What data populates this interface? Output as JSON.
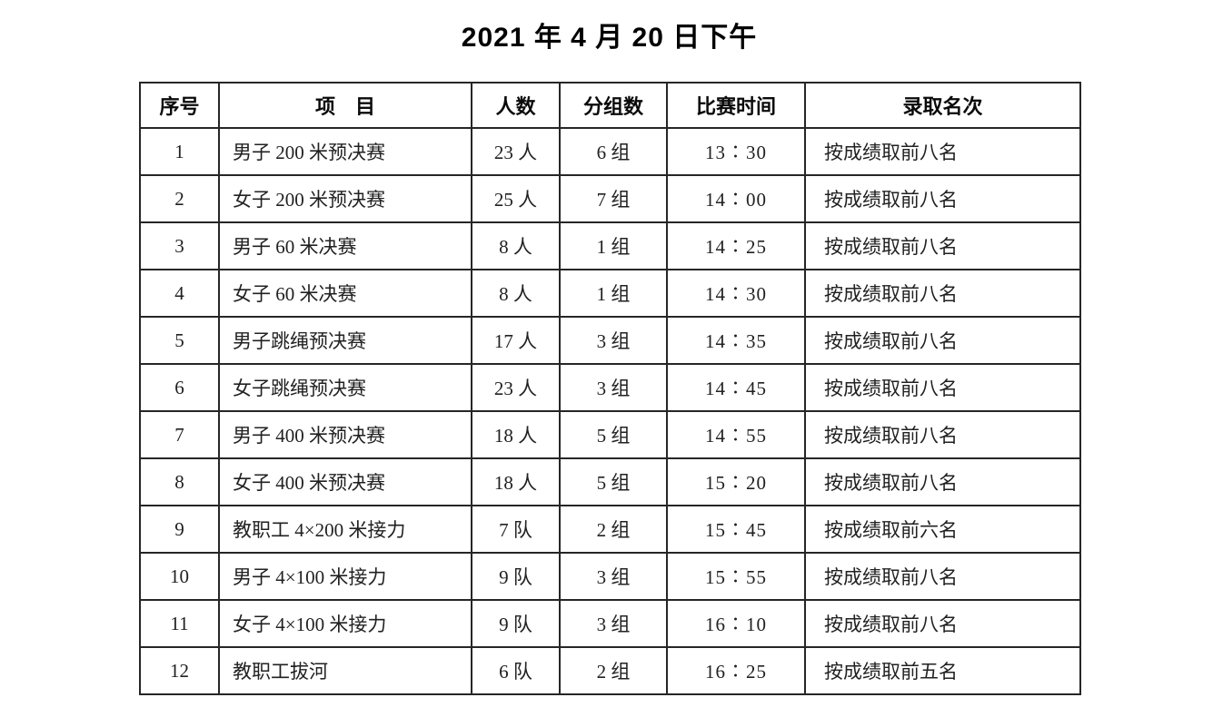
{
  "title": "2021 年 4 月 20 日下午",
  "table": {
    "headers": [
      "序号",
      "项　目",
      "人数",
      "分组数",
      "比赛时间",
      "录取名次"
    ],
    "rows": [
      {
        "no": "1",
        "event": "男子 200 米预决赛",
        "participants": "23 人",
        "groups": "6 组",
        "time": "13∶30",
        "placing": "按成绩取前八名"
      },
      {
        "no": "2",
        "event": "女子 200 米预决赛",
        "participants": "25 人",
        "groups": "7 组",
        "time": "14∶00",
        "placing": "按成绩取前八名"
      },
      {
        "no": "3",
        "event": "男子 60 米决赛",
        "participants": "8 人",
        "groups": "1 组",
        "time": "14∶25",
        "placing": "按成绩取前八名"
      },
      {
        "no": "4",
        "event": "女子 60 米决赛",
        "participants": "8 人",
        "groups": "1 组",
        "time": "14∶30",
        "placing": "按成绩取前八名"
      },
      {
        "no": "5",
        "event": "男子跳绳预决赛",
        "participants": "17 人",
        "groups": "3 组",
        "time": "14∶35",
        "placing": "按成绩取前八名"
      },
      {
        "no": "6",
        "event": "女子跳绳预决赛",
        "participants": "23 人",
        "groups": "3 组",
        "time": "14∶45",
        "placing": "按成绩取前八名"
      },
      {
        "no": "7",
        "event": "男子 400 米预决赛",
        "participants": "18 人",
        "groups": "5 组",
        "time": "14∶55",
        "placing": "按成绩取前八名"
      },
      {
        "no": "8",
        "event": "女子 400 米预决赛",
        "participants": "18 人",
        "groups": "5 组",
        "time": "15∶20",
        "placing": "按成绩取前八名"
      },
      {
        "no": "9",
        "event": "教职工 4×200 米接力",
        "participants": "7 队",
        "groups": "2 组",
        "time": "15∶45",
        "placing": "按成绩取前六名"
      },
      {
        "no": "10",
        "event": "男子 4×100 米接力",
        "participants": "9 队",
        "groups": "3 组",
        "time": "15∶55",
        "placing": "按成绩取前八名"
      },
      {
        "no": "11",
        "event": "女子 4×100 米接力",
        "participants": "9 队",
        "groups": "3 组",
        "time": "16∶10",
        "placing": "按成绩取前八名"
      },
      {
        "no": "12",
        "event": "教职工拔河",
        "participants": "6 队",
        "groups": "2 组",
        "time": "16∶25",
        "placing": "按成绩取前五名"
      }
    ]
  }
}
